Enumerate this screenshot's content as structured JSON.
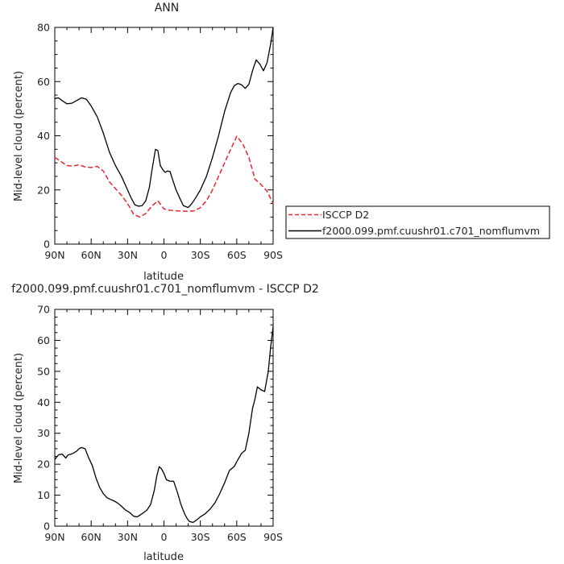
{
  "chart_data": [
    {
      "type": "line",
      "title": "ANN",
      "xlabel": "latitude",
      "ylabel": "Mid-level cloud (percent)",
      "xlim": [
        90,
        -90
      ],
      "ylim": [
        0,
        80
      ],
      "xticks": [
        90,
        60,
        30,
        0,
        -30,
        -60,
        -90
      ],
      "xtick_labels": [
        "90N",
        "60N",
        "30N",
        "0",
        "30S",
        "60S",
        "90S"
      ],
      "yticks": [
        0,
        20,
        40,
        60,
        80
      ],
      "ytick_labels": [
        "0",
        "20",
        "40",
        "60",
        "80"
      ],
      "legend": "right",
      "series": [
        {
          "name": "ISCCP D2",
          "color": "#e8262b",
          "dash": "dashed",
          "x": [
            90,
            85,
            80,
            75,
            70,
            65,
            60,
            55,
            50,
            45,
            40,
            35,
            30,
            25,
            20,
            15,
            10,
            5,
            0,
            -5,
            -10,
            -15,
            -20,
            -25,
            -30,
            -35,
            -40,
            -45,
            -50,
            -55,
            -60,
            -65,
            -70,
            -75,
            -80,
            -85,
            -90
          ],
          "y": [
            32,
            30.5,
            29,
            28.8,
            29.3,
            28.5,
            28.3,
            28.7,
            27,
            23,
            20.5,
            18,
            15,
            11,
            10,
            11.3,
            14,
            16,
            13,
            12.5,
            12.3,
            12.2,
            12.1,
            12.3,
            13.5,
            16,
            20,
            25,
            30,
            35,
            39.8,
            37,
            32,
            24,
            22,
            19.5,
            15
          ]
        },
        {
          "name": "f2000.099.pmf.cuushr01.c701_nomflumvm",
          "color": "#000000",
          "dash": "solid",
          "x": [
            90,
            87,
            84,
            80,
            76,
            72,
            68,
            64,
            60,
            55,
            50,
            45,
            40,
            35,
            30,
            27,
            24,
            21,
            18,
            15,
            12,
            10,
            7,
            5,
            3,
            1,
            -1,
            -3,
            -5,
            -7,
            -10,
            -13,
            -16,
            -20,
            -23,
            -26,
            -30,
            -35,
            -40,
            -45,
            -50,
            -55,
            -58,
            -61,
            -64,
            -67,
            -70,
            -73,
            -76,
            -79,
            -82,
            -85,
            -88,
            -90
          ],
          "y": [
            53.7,
            54,
            53,
            51.8,
            52,
            53,
            54,
            53.5,
            51,
            47,
            41,
            34,
            29,
            25,
            20,
            17,
            14.5,
            14,
            14.2,
            16,
            21,
            27,
            35,
            34.5,
            29,
            27.5,
            26.5,
            27,
            26.8,
            24,
            20,
            17,
            14.2,
            13.5,
            15,
            17,
            20,
            25,
            32,
            40,
            49,
            56,
            58.5,
            59.3,
            58.8,
            57.5,
            59,
            64,
            68,
            66.5,
            64,
            67,
            74,
            80
          ]
        }
      ]
    },
    {
      "type": "line",
      "title": "f2000.099.pmf.cuushr01.c701_nomflumvm - ISCCP D2",
      "xlabel": "latitude",
      "ylabel": "Mid-level cloud (percent)",
      "xlim": [
        90,
        -90
      ],
      "ylim": [
        0,
        70
      ],
      "xticks": [
        90,
        60,
        30,
        0,
        -30,
        -60,
        -90
      ],
      "xtick_labels": [
        "90N",
        "60N",
        "30N",
        "0",
        "30S",
        "60S",
        "90S"
      ],
      "yticks": [
        0,
        10,
        20,
        30,
        40,
        50,
        60,
        70
      ],
      "ytick_labels": [
        "0",
        "10",
        "20",
        "30",
        "40",
        "50",
        "60",
        "70"
      ],
      "series": [
        {
          "color": "#000000",
          "dash": "solid",
          "x": [
            90,
            87,
            84,
            81,
            79,
            77,
            75,
            72,
            70,
            68,
            65,
            62,
            59,
            56,
            53,
            50,
            47,
            44,
            41,
            38,
            35,
            32,
            30,
            28,
            25,
            22,
            20,
            17,
            14,
            11,
            8,
            6,
            4,
            2,
            0,
            -2,
            -5,
            -8,
            -11,
            -14,
            -17,
            -19,
            -21,
            -24,
            -27,
            -30,
            -34,
            -38,
            -42,
            -46,
            -50,
            -54,
            -58,
            -61,
            -64,
            -67,
            -70,
            -73,
            -75,
            -77,
            -80,
            -83,
            -86,
            -88,
            -90
          ],
          "y": [
            21.5,
            23,
            23.3,
            22,
            23,
            23.2,
            23.5,
            24.2,
            25,
            25.4,
            25,
            22,
            19.5,
            15.5,
            12.5,
            10.5,
            9.2,
            8.6,
            8.1,
            7.4,
            6.4,
            5.3,
            4.8,
            4.3,
            3.2,
            3,
            3.5,
            4.3,
            5.2,
            7,
            11.5,
            16,
            19.2,
            18.5,
            17,
            15,
            14.5,
            14.5,
            11,
            7,
            4,
            2.5,
            1.5,
            1.2,
            2,
            3,
            4,
            5.5,
            7.5,
            10.5,
            14,
            18,
            19.3,
            21.5,
            23.5,
            24.5,
            30,
            38,
            41,
            45,
            44,
            43.5,
            50,
            58,
            64.5
          ]
        }
      ]
    }
  ]
}
